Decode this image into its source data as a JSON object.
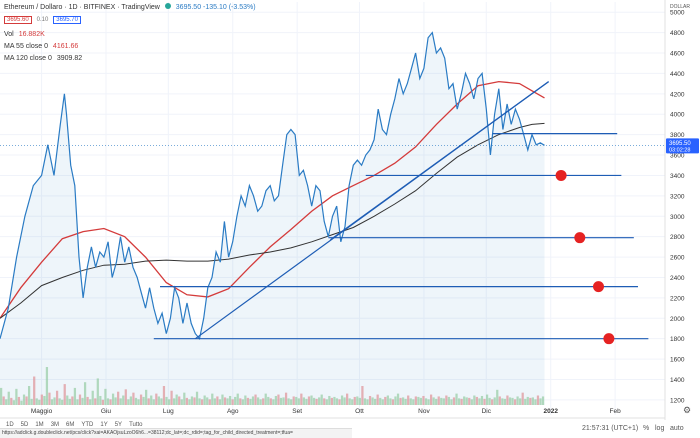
{
  "header": {
    "symbol_title": "Ethereum / Dollaro · 1D · BITFINEX · TradingView",
    "bid": "3695.60",
    "spread": "0.10",
    "ask": "3695.70",
    "price_change": "3695.50  -135.10 (-3.53%)"
  },
  "legend": {
    "vol_label": "Vol",
    "vol_value": "16.882K",
    "ma55_label": "MA 55 close 0",
    "ma55_value": "4161.66",
    "ma120_label": "MA 120 close 0",
    "ma120_value": "3909.82"
  },
  "price_scale": {
    "currency": "DOLLAR",
    "current_price": "3695.50",
    "countdown": "03:02:28"
  },
  "bottom_bar": {
    "ranges": [
      "1D",
      "5D",
      "1M",
      "3M",
      "6M",
      "YTD",
      "1Y",
      "5Y",
      "Tutto"
    ],
    "clock": "21:57:31 (UTC+1)",
    "percent": "%",
    "log": "log",
    "auto": "auto",
    "url": "https://adclick.g.doubleclick.net/pcs/click?xai=AKAOjsuLzoO6h6...=38112;dc_lat=;dc_rdid=;tag_for_child_directed_treatment=;tfua="
  },
  "colors": {
    "price": "#2a7bc4",
    "ma55": "#d43b3b",
    "ma120": "#333333",
    "hline": "#1e5db5",
    "marker": "#e52222",
    "badge": "#2962ff",
    "bid": "#d43b3b",
    "ask": "#2962ff"
  },
  "chart_data": {
    "type": "line",
    "xlabel": "",
    "ylabel": "",
    "ylim": [
      1150,
      5100
    ],
    "x_ticks": [
      {
        "label": "Maggio",
        "day": 0
      },
      {
        "label": "Giu",
        "day": 31
      },
      {
        "label": "Lug",
        "day": 61
      },
      {
        "label": "Ago",
        "day": 92
      },
      {
        "label": "Set",
        "day": 123
      },
      {
        "label": "Ott",
        "day": 153
      },
      {
        "label": "Nov",
        "day": 184
      },
      {
        "label": "Dic",
        "day": 214
      },
      {
        "label": "2022",
        "day": 245
      },
      {
        "label": "Feb",
        "day": 276
      }
    ],
    "y_ticks": [
      1200,
      1400,
      1600,
      1800,
      2000,
      2200,
      2400,
      2600,
      2800,
      3000,
      3200,
      3400,
      3600,
      3800,
      4000,
      4200,
      4400,
      4600,
      4800,
      5000
    ],
    "series": [
      {
        "name": "Ethereum / Dollaro",
        "points": [
          [
            -20,
            1800
          ],
          [
            -16,
            2100
          ],
          [
            -12,
            2600
          ],
          [
            -8,
            3000
          ],
          [
            -4,
            3300
          ],
          [
            0,
            3400
          ],
          [
            3,
            3700
          ],
          [
            6,
            3400
          ],
          [
            9,
            3900
          ],
          [
            11,
            4200
          ],
          [
            12,
            4000
          ],
          [
            14,
            3500
          ],
          [
            16,
            3300
          ],
          [
            18,
            2600
          ],
          [
            20,
            2200
          ],
          [
            22,
            2500
          ],
          [
            24,
            2700
          ],
          [
            26,
            2500
          ],
          [
            28,
            2650
          ],
          [
            30,
            2600
          ],
          [
            32,
            2750
          ],
          [
            34,
            2400
          ],
          [
            36,
            2550
          ],
          [
            38,
            2800
          ],
          [
            40,
            2550
          ],
          [
            42,
            2700
          ],
          [
            44,
            2500
          ],
          [
            46,
            2400
          ],
          [
            48,
            2250
          ],
          [
            50,
            2100
          ],
          [
            52,
            2300
          ],
          [
            54,
            2100
          ],
          [
            56,
            1950
          ],
          [
            58,
            2050
          ],
          [
            60,
            1850
          ],
          [
            62,
            2000
          ],
          [
            64,
            2300
          ],
          [
            66,
            2200
          ],
          [
            68,
            1950
          ],
          [
            70,
            2150
          ],
          [
            72,
            1950
          ],
          [
            74,
            1850
          ],
          [
            76,
            1800
          ],
          [
            78,
            2000
          ],
          [
            80,
            2300
          ],
          [
            82,
            2400
          ],
          [
            84,
            2650
          ],
          [
            86,
            2550
          ],
          [
            88,
            2950
          ],
          [
            90,
            2600
          ],
          [
            92,
            2750
          ],
          [
            94,
            3000
          ],
          [
            96,
            3200
          ],
          [
            98,
            3100
          ],
          [
            100,
            3300
          ],
          [
            102,
            3200
          ],
          [
            104,
            3050
          ],
          [
            106,
            3100
          ],
          [
            108,
            3250
          ],
          [
            110,
            3300
          ],
          [
            112,
            3150
          ],
          [
            114,
            3200
          ],
          [
            116,
            3500
          ],
          [
            118,
            3800
          ],
          [
            120,
            3850
          ],
          [
            122,
            3800
          ],
          [
            124,
            3400
          ],
          [
            126,
            3450
          ],
          [
            128,
            3300
          ],
          [
            130,
            3100
          ],
          [
            132,
            3300
          ],
          [
            134,
            3250
          ],
          [
            136,
            2950
          ],
          [
            138,
            2800
          ],
          [
            140,
            3000
          ],
          [
            142,
            3100
          ],
          [
            144,
            2750
          ],
          [
            146,
            2900
          ],
          [
            148,
            3300
          ],
          [
            150,
            3500
          ],
          [
            152,
            3550
          ],
          [
            154,
            3500
          ],
          [
            156,
            3600
          ],
          [
            158,
            3650
          ],
          [
            160,
            3750
          ],
          [
            162,
            4050
          ],
          [
            164,
            3850
          ],
          [
            166,
            3800
          ],
          [
            168,
            4000
          ],
          [
            170,
            4150
          ],
          [
            172,
            4350
          ],
          [
            174,
            4200
          ],
          [
            176,
            4300
          ],
          [
            178,
            4450
          ],
          [
            180,
            4600
          ],
          [
            182,
            4350
          ],
          [
            184,
            4450
          ],
          [
            186,
            4750
          ],
          [
            188,
            4800
          ],
          [
            190,
            4600
          ],
          [
            192,
            4650
          ],
          [
            194,
            4550
          ],
          [
            196,
            4250
          ],
          [
            198,
            4300
          ],
          [
            200,
            4050
          ],
          [
            202,
            4200
          ],
          [
            204,
            4400
          ],
          [
            206,
            4300
          ],
          [
            208,
            4150
          ],
          [
            210,
            4350
          ],
          [
            212,
            4400
          ],
          [
            214,
            4050
          ],
          [
            216,
            3600
          ],
          [
            218,
            4000
          ],
          [
            220,
            4250
          ],
          [
            222,
            3850
          ],
          [
            224,
            4100
          ],
          [
            226,
            3900
          ],
          [
            228,
            4050
          ],
          [
            230,
            3950
          ],
          [
            232,
            3800
          ],
          [
            234,
            3650
          ],
          [
            236,
            3800
          ],
          [
            238,
            3700
          ],
          [
            240,
            3720
          ],
          [
            242,
            3695
          ]
        ]
      },
      {
        "name": "MA 55 close 0",
        "points": [
          [
            -20,
            2000
          ],
          [
            -10,
            2300
          ],
          [
            0,
            2550
          ],
          [
            10,
            2780
          ],
          [
            20,
            2850
          ],
          [
            30,
            2880
          ],
          [
            40,
            2800
          ],
          [
            50,
            2600
          ],
          [
            60,
            2350
          ],
          [
            70,
            2230
          ],
          [
            80,
            2210
          ],
          [
            90,
            2290
          ],
          [
            100,
            2500
          ],
          [
            110,
            2700
          ],
          [
            120,
            2870
          ],
          [
            130,
            3050
          ],
          [
            140,
            3200
          ],
          [
            150,
            3300
          ],
          [
            160,
            3400
          ],
          [
            170,
            3520
          ],
          [
            180,
            3680
          ],
          [
            190,
            3900
          ],
          [
            200,
            4100
          ],
          [
            210,
            4280
          ],
          [
            220,
            4320
          ],
          [
            230,
            4300
          ],
          [
            236,
            4230
          ],
          [
            242,
            4160
          ]
        ]
      },
      {
        "name": "MA 120 close 0",
        "points": [
          [
            -20,
            2000
          ],
          [
            -10,
            2150
          ],
          [
            0,
            2320
          ],
          [
            10,
            2400
          ],
          [
            20,
            2470
          ],
          [
            30,
            2520
          ],
          [
            40,
            2530
          ],
          [
            50,
            2560
          ],
          [
            60,
            2570
          ],
          [
            70,
            2560
          ],
          [
            80,
            2560
          ],
          [
            90,
            2580
          ],
          [
            100,
            2620
          ],
          [
            110,
            2650
          ],
          [
            120,
            2690
          ],
          [
            130,
            2750
          ],
          [
            140,
            2820
          ],
          [
            150,
            2890
          ],
          [
            160,
            3000
          ],
          [
            170,
            3120
          ],
          [
            180,
            3250
          ],
          [
            190,
            3420
          ],
          [
            200,
            3580
          ],
          [
            210,
            3700
          ],
          [
            220,
            3800
          ],
          [
            230,
            3870
          ],
          [
            236,
            3900
          ],
          [
            242,
            3910
          ]
        ]
      }
    ],
    "volume": [
      180,
      90,
      60,
      140,
      75,
      50,
      170,
      85,
      45,
      110,
      90,
      200,
      65,
      300,
      70,
      55,
      110,
      95,
      400,
      130,
      60,
      80,
      150,
      70,
      55,
      220,
      100,
      65,
      90,
      180,
      60,
      110,
      75,
      240,
      85,
      60,
      150,
      70,
      280,
      95,
      55,
      170,
      70,
      60,
      120,
      80,
      140,
      70,
      100,
      165,
      60,
      90,
      130,
      75,
      60,
      110,
      85,
      160,
      70,
      100,
      60,
      120,
      90,
      70,
      200,
      85,
      60,
      150,
      70,
      110,
      90,
      60,
      130,
      75,
      60,
      90,
      80,
      140,
      70,
      60,
      100,
      80,
      60,
      120,
      70,
      90,
      60,
      110,
      80,
      70,
      95,
      60,
      85,
      120,
      70,
      60,
      100,
      75,
      65,
      90,
      110,
      80,
      60,
      70,
      120,
      85,
      70,
      60,
      95,
      110,
      75,
      80,
      130,
      70,
      60,
      90,
      85,
      70,
      120,
      80,
      65,
      90,
      100,
      75,
      65,
      80,
      110,
      70,
      60,
      95,
      75,
      85,
      70,
      60,
      100,
      80,
      120,
      70,
      60,
      85,
      90,
      75,
      200,
      70,
      60,
      95,
      80,
      65,
      110,
      75,
      60,
      85,
      100,
      70,
      60,
      90,
      120,
      75,
      80,
      65,
      100,
      70,
      60,
      90,
      85,
      75,
      95,
      70,
      60,
      110,
      80,
      65,
      90,
      75,
      70,
      100,
      85,
      60,
      80,
      120,
      70,
      65,
      90,
      80,
      75,
      60,
      100,
      85,
      70,
      95,
      65,
      110,
      75,
      60,
      80,
      160,
      90,
      70,
      65,
      100,
      80,
      75,
      60,
      90,
      70,
      130,
      65,
      85,
      75,
      80,
      60,
      100,
      70,
      90
    ],
    "volume_x": [
      -20,
      242
    ],
    "annotations": {
      "hlines": [
        {
          "price": 3810,
          "from_day": 217,
          "to_day": 277
        },
        {
          "price": 3400,
          "from_day": 156,
          "to_day": 279
        },
        {
          "price": 2790,
          "from_day": 138,
          "to_day": 285
        },
        {
          "price": 2310,
          "from_day": 57,
          "to_day": 287
        },
        {
          "price": 1800,
          "from_day": 54,
          "to_day": 292
        }
      ],
      "trendlines": [
        {
          "from": [
            74,
            1800
          ],
          "to": [
            244,
            4320
          ]
        },
        {
          "from": [
            139,
            2770
          ],
          "to": [
            244,
            4320
          ]
        }
      ],
      "markers": [
        {
          "day": 250,
          "price": 3400
        },
        {
          "day": 259,
          "price": 2790
        },
        {
          "day": 268,
          "price": 2310
        },
        {
          "day": 273,
          "price": 1800
        }
      ]
    }
  }
}
